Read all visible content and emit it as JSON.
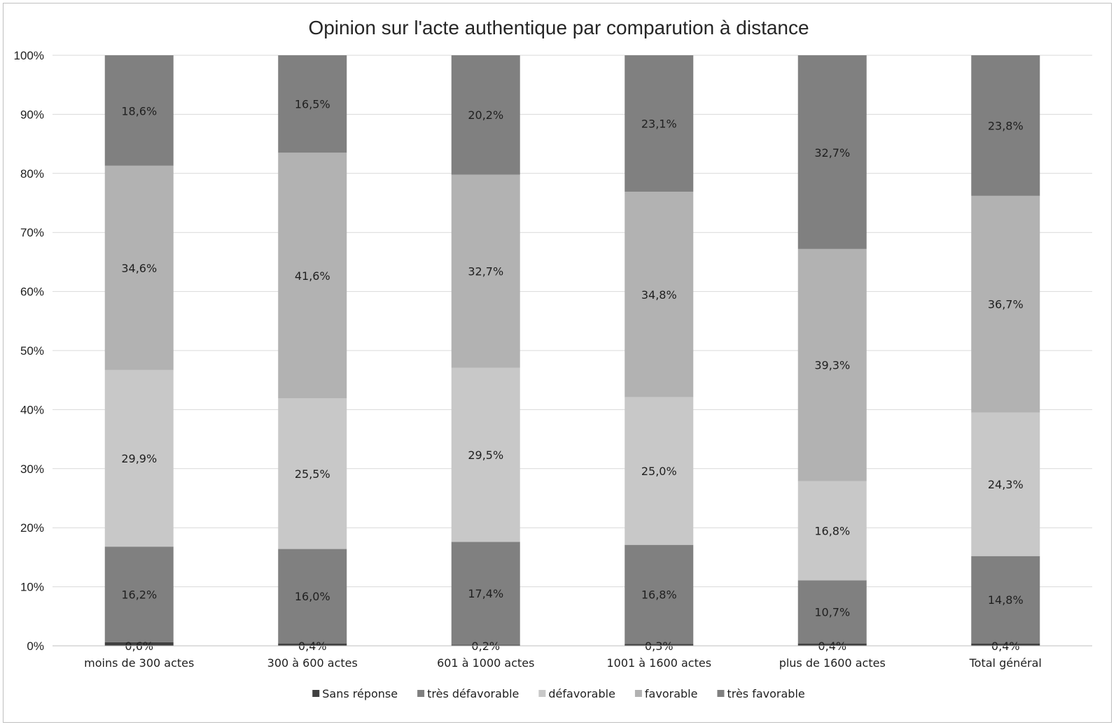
{
  "chart_data": {
    "type": "bar",
    "stacked": true,
    "title": "Opinion sur l'acte authentique par comparution à distance",
    "categories": [
      "moins de 300 actes",
      "300 à 600 actes",
      "601 à 1000 actes",
      "1001 à 1600 actes",
      "plus de 1600 actes",
      "Total général"
    ],
    "ylim": [
      0,
      100
    ],
    "yticks": [
      "0%",
      "10%",
      "20%",
      "30%",
      "40%",
      "50%",
      "60%",
      "70%",
      "80%",
      "90%",
      "100%"
    ],
    "grid": true,
    "legend_position": "bottom",
    "series": [
      {
        "name": "Sans réponse",
        "color": "#404040",
        "values": [
          0.6,
          0.4,
          0.2,
          0.3,
          0.4,
          0.4
        ],
        "labels": [
          "0,6%",
          "0,4%",
          "0,2%",
          "0,3%",
          "0,4%",
          "0,4%"
        ]
      },
      {
        "name": "très défavorable",
        "color": "#808080",
        "values": [
          16.2,
          16.0,
          17.4,
          16.8,
          10.7,
          14.8
        ],
        "labels": [
          "16,2%",
          "16,0%",
          "17,4%",
          "16,8%",
          "10,7%",
          "14,8%"
        ]
      },
      {
        "name": "défavorable",
        "color": "#c8c8c8",
        "values": [
          29.9,
          25.5,
          29.5,
          25.0,
          16.8,
          24.3
        ],
        "labels": [
          "29,9%",
          "25,5%",
          "29,5%",
          "25,0%",
          "16,8%",
          "24,3%"
        ]
      },
      {
        "name": "favorable",
        "color": "#b2b2b2",
        "values": [
          34.6,
          41.6,
          32.7,
          34.8,
          39.3,
          36.7
        ],
        "labels": [
          "34,6%",
          "41,6%",
          "32,7%",
          "34,8%",
          "39,3%",
          "36,7%"
        ]
      },
      {
        "name": "très favorable",
        "color": "#808080",
        "values": [
          18.6,
          16.5,
          20.2,
          23.1,
          32.7,
          23.8
        ],
        "labels": [
          "18,6%",
          "16,5%",
          "20,2%",
          "23,1%",
          "32,7%",
          "23,8%"
        ]
      }
    ]
  }
}
